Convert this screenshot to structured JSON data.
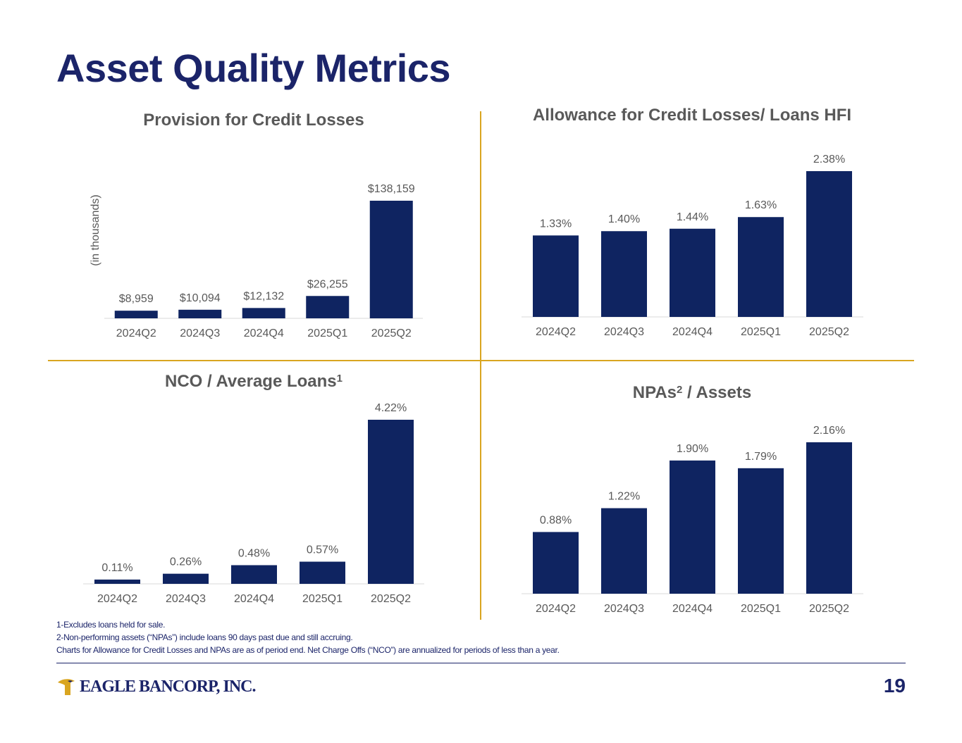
{
  "page": {
    "title": "Asset Quality Metrics",
    "unit_label": "(in thousands)",
    "page_number": "19",
    "logo_text": "EAGLE BANCORP, INC."
  },
  "footnotes": [
    "1-Excludes loans held for sale.",
    "2-Non-performing assets (“NPAs”) include loans 90 days past due and still accruing.",
    "Charts for Allowance for Credit Losses and NPAs are as of period end. Net Charge Offs (“NCO”) are annualized for periods of less than a year."
  ],
  "colors": {
    "bar": "#0f2461",
    "title": "#1b2469",
    "divider": "#d9a520",
    "text": "#595959"
  },
  "chart_data": [
    {
      "type": "bar",
      "title": "Provision for Credit Losses",
      "ylabel": "(in thousands)",
      "categories": [
        "2024Q2",
        "2024Q3",
        "2024Q4",
        "2025Q1",
        "2025Q2"
      ],
      "values": [
        8959,
        10094,
        12132,
        26255,
        138159
      ],
      "labels": [
        "$8,959",
        "$10,094",
        "$12,132",
        "$26,255",
        "$138,159"
      ],
      "ylim": [
        0,
        138159
      ],
      "grid": false
    },
    {
      "type": "bar",
      "title": "Allowance for Credit Losses/ Loans HFI",
      "categories": [
        "2024Q2",
        "2024Q3",
        "2024Q4",
        "2025Q1",
        "2025Q2"
      ],
      "values": [
        1.33,
        1.4,
        1.44,
        1.63,
        2.38
      ],
      "labels": [
        "1.33%",
        "1.40%",
        "1.44%",
        "1.63%",
        "2.38%"
      ],
      "ylim": [
        0,
        2.38
      ],
      "grid": false
    },
    {
      "type": "bar",
      "title": "NCO / Average Loans",
      "title_sup": "1",
      "categories": [
        "2024Q2",
        "2024Q3",
        "2024Q4",
        "2025Q1",
        "2025Q2"
      ],
      "values": [
        0.11,
        0.26,
        0.48,
        0.57,
        4.22
      ],
      "labels": [
        "0.11%",
        "0.26%",
        "0.48%",
        "0.57%",
        "4.22%"
      ],
      "ylim": [
        0,
        4.22
      ],
      "grid": false
    },
    {
      "type": "bar",
      "title": "NPAs",
      "title_sup": "2",
      "title_suffix": " /  Assets",
      "categories": [
        "2024Q2",
        "2024Q3",
        "2024Q4",
        "2025Q1",
        "2025Q2"
      ],
      "values": [
        0.88,
        1.22,
        1.9,
        1.79,
        2.16
      ],
      "labels": [
        "0.88%",
        "1.22%",
        "1.90%",
        "1.79%",
        "2.16%"
      ],
      "ylim": [
        0,
        2.16
      ],
      "grid": false
    }
  ]
}
